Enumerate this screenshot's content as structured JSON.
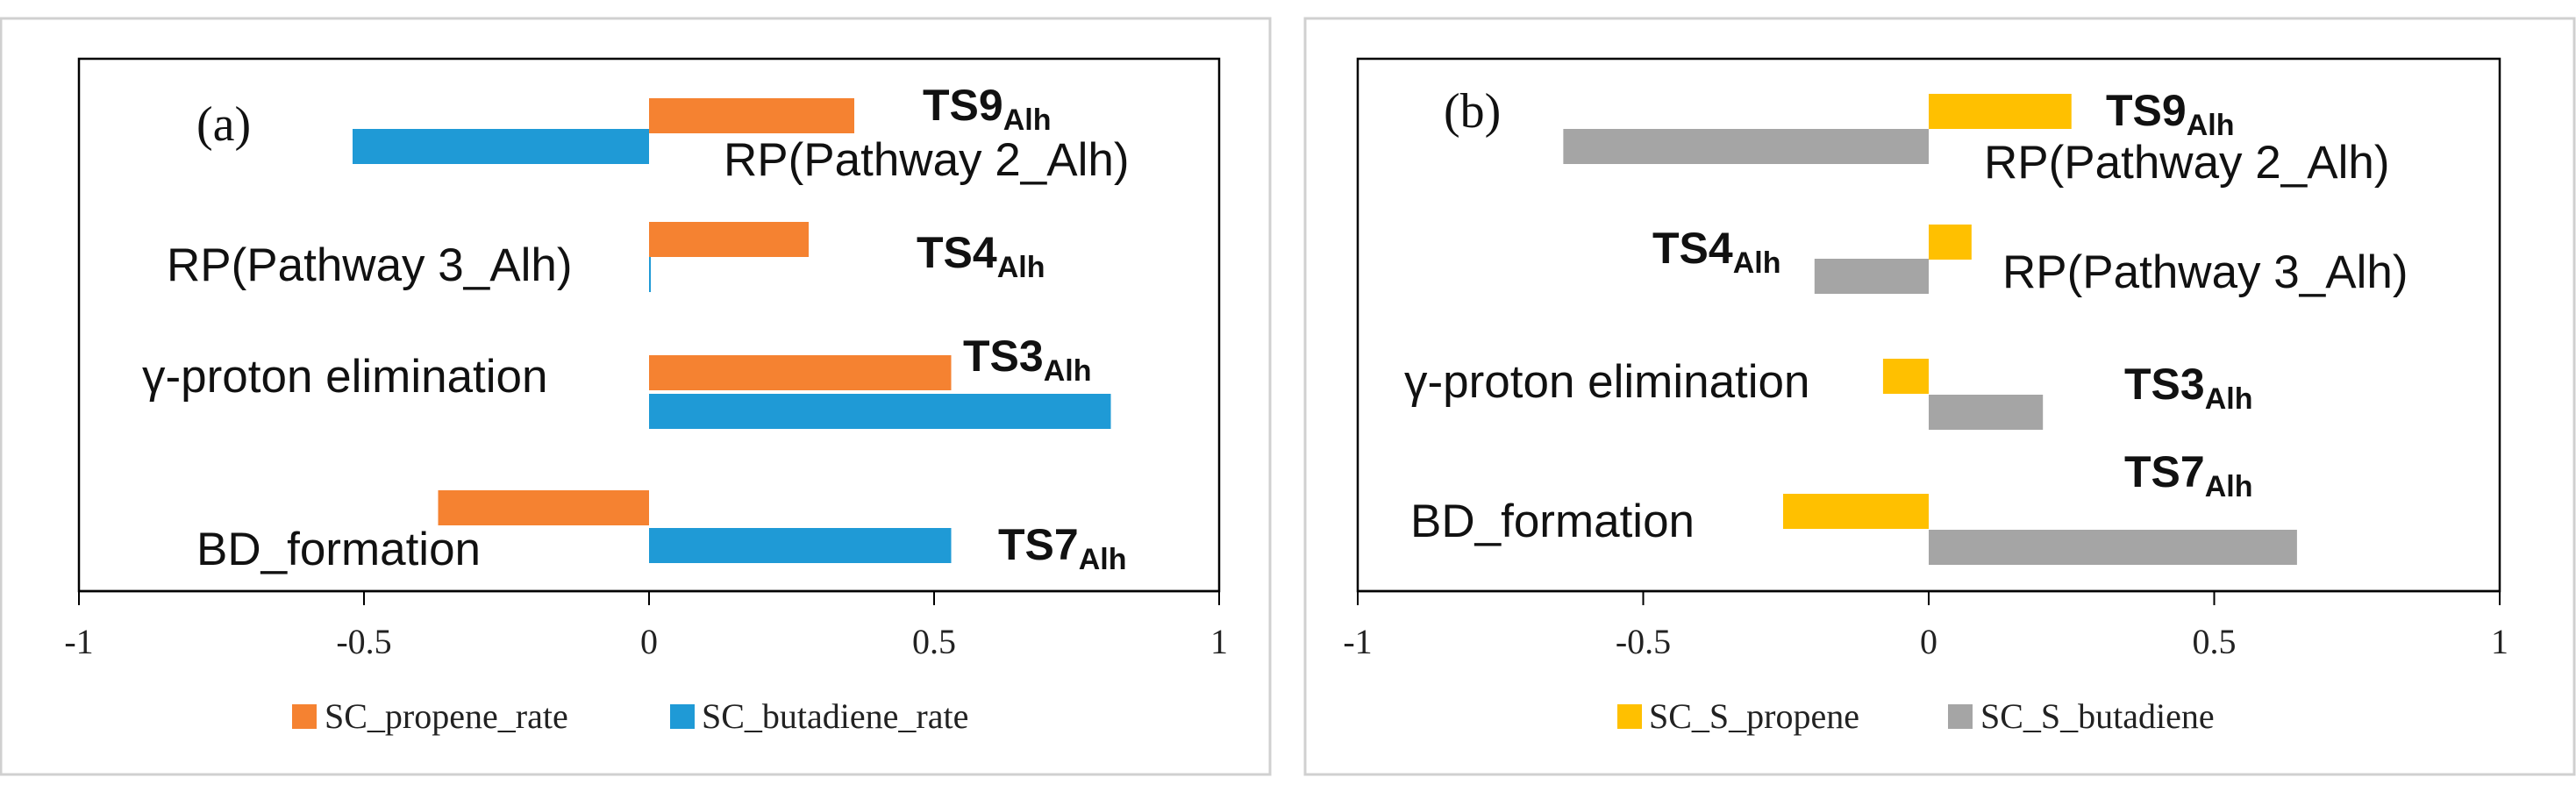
{
  "chart_data": [
    {
      "type": "bar",
      "orientation": "horizontal",
      "panel_label": "(a)",
      "xlim": [
        -1,
        1
      ],
      "x_ticks": [
        "-1",
        "-0.5",
        "0",
        "0.5",
        "1"
      ],
      "grid": false,
      "legend_position": "bottom",
      "categories": [
        "RP(Pathway 2_Alh)",
        "RP(Pathway 3_Alh)",
        "γ-proton elimination",
        "BD_formation"
      ],
      "series": [
        {
          "name": "SC_propene_rate",
          "color": "#f58231",
          "values": [
            0.36,
            0.28,
            0.53,
            -0.37
          ]
        },
        {
          "name": "SC_butadiene_rate",
          "color": "#1f9ad6",
          "values": [
            -0.52,
            0.003,
            0.81,
            0.53
          ]
        }
      ],
      "ts_labels": [
        {
          "main": "TS9",
          "sub": "Alh"
        },
        {
          "main": "TS4",
          "sub": "Alh"
        },
        {
          "main": "TS3",
          "sub": "Alh"
        },
        {
          "main": "TS7",
          "sub": "Alh"
        }
      ]
    },
    {
      "type": "bar",
      "orientation": "horizontal",
      "panel_label": "(b)",
      "xlim": [
        -1,
        1
      ],
      "x_ticks": [
        "-1",
        "-0.5",
        "0",
        "0.5",
        "1"
      ],
      "grid": false,
      "legend_position": "bottom",
      "categories": [
        "RP(Pathway 2_Alh)",
        "RP(Pathway 3_Alh)",
        "γ-proton elimination",
        "BD_formation"
      ],
      "series": [
        {
          "name": "SC_S_propene",
          "color": "#ffc000",
          "values": [
            0.25,
            0.075,
            -0.08,
            -0.255
          ]
        },
        {
          "name": "SC_S_butadiene",
          "color": "#a5a5a5",
          "values": [
            -0.64,
            -0.2,
            0.2,
            0.645
          ]
        }
      ],
      "ts_labels": [
        {
          "main": "TS9",
          "sub": "Alh"
        },
        {
          "main": "TS4",
          "sub": "Alh"
        },
        {
          "main": "TS3",
          "sub": "Alh"
        },
        {
          "main": "TS7",
          "sub": "Alh"
        }
      ]
    }
  ]
}
